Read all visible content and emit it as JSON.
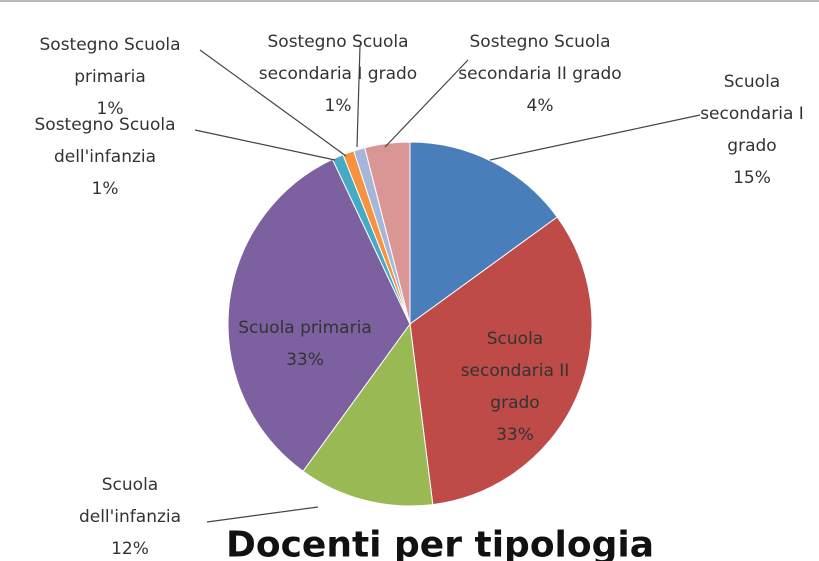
{
  "chart_data": {
    "type": "pie",
    "title": "Docenti per tipologia",
    "categories": [
      "Scuola secondaria I grado",
      "Scuola secondaria II grado",
      "Scuola dell'infanzia",
      "Scuola primaria",
      "Sostegno Scuola dell'infanzia",
      "Sostegno Scuola primaria",
      "Sostegno Scuola secondaria I grado",
      "Sostegno Scuola secondaria II grado"
    ],
    "values": [
      15,
      33,
      12,
      33,
      1,
      1,
      1,
      4
    ],
    "value_labels": [
      "15%",
      "33%",
      "12%",
      "33%",
      "1%",
      "1%",
      "1%",
      "4%"
    ],
    "colors": [
      "#4a7ebb",
      "#be4b48",
      "#98b954",
      "#7d60a0",
      "#46aac5",
      "#f69240",
      "#a5b6d9",
      "#d99694"
    ]
  }
}
